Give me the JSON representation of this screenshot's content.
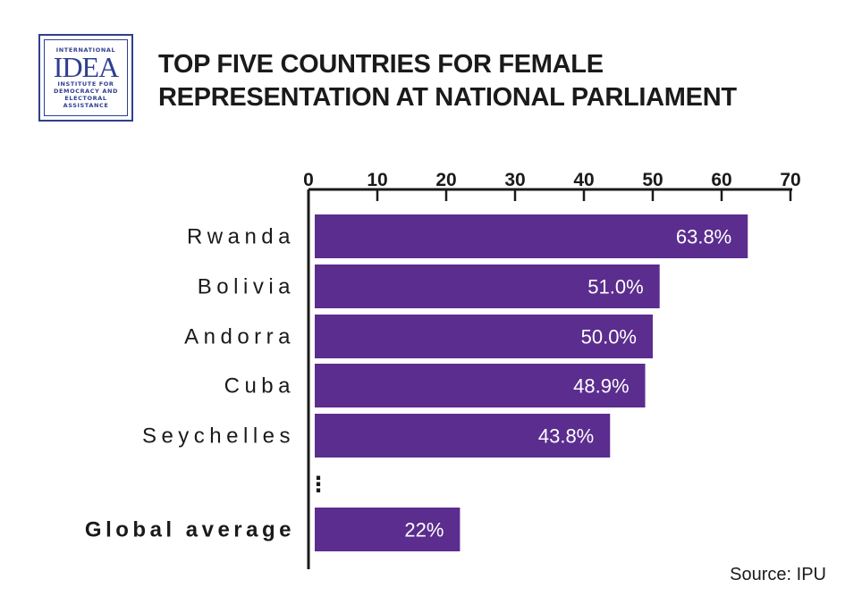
{
  "logo": {
    "top": "INTERNATIONAL",
    "mark": "IDEA",
    "lines": [
      "INSTITUTE FOR",
      "DEMOCRACY AND",
      "ELECTORAL",
      "ASSISTANCE"
    ]
  },
  "title_lines": [
    "TOP FIVE COUNTRIES FOR FEMALE",
    "REPRESENTATION AT NATIONAL PARLIAMENT"
  ],
  "source": "Source: IPU",
  "colors": {
    "bar": "#5b2d8e",
    "axis": "#1a1a1a",
    "bar_label": "#ffffff"
  },
  "chart_data": {
    "type": "bar",
    "orientation": "horizontal",
    "title": "TOP FIVE COUNTRIES FOR FEMALE REPRESENTATION AT NATIONAL PARLIAMENT",
    "categories": [
      "Rwanda",
      "Bolivia",
      "Andorra",
      "Cuba",
      "Seychelles",
      "Global average"
    ],
    "values": [
      63.8,
      51.0,
      50.0,
      48.9,
      43.8,
      22
    ],
    "value_labels": [
      "63.8%",
      "51.0%",
      "50.0%",
      "48.9%",
      "43.8%",
      "22%"
    ],
    "emphasized_category": "Global average",
    "xlim": [
      0,
      70
    ],
    "x_ticks": [
      0,
      10,
      20,
      30,
      40,
      50,
      60,
      70
    ],
    "x_axis_position": "top",
    "gap_marker": "⋮",
    "grid": false,
    "xlabel": "",
    "ylabel": ""
  }
}
